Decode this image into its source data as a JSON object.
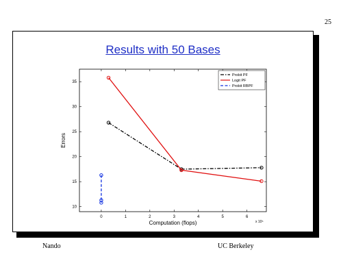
{
  "page_number": "25",
  "slide": {
    "title": "Results with 50 Bases"
  },
  "footer": {
    "left": "Nando",
    "right": "UC Berkeley"
  },
  "chart_data": {
    "type": "line",
    "title": "",
    "xlabel": "Computation (flops)",
    "ylabel": "Errors",
    "x_multiplier": "x 10⁵",
    "xlim": [
      -0.9,
      6.8
    ],
    "ylim": [
      9,
      37.5
    ],
    "xticks": [
      0,
      1,
      2,
      3,
      4,
      5,
      6
    ],
    "yticks": [
      10,
      15,
      20,
      25,
      30,
      35
    ],
    "grid": false,
    "legend_position": "top-right",
    "series": [
      {
        "name": "Probit PF",
        "color": "#000000",
        "line_style": "dash-dot",
        "marker": "circle",
        "x": [
          0.3,
          3.3,
          6.6
        ],
        "y": [
          26.8,
          17.5,
          17.8
        ]
      },
      {
        "name": "Logit PF",
        "color": "#e01010",
        "line_style": "solid",
        "marker": "circle",
        "x": [
          0.3,
          3.3,
          6.6
        ],
        "y": [
          35.8,
          17.3,
          15.1
        ]
      },
      {
        "name": "Probit RBPF",
        "color": "#1030e0",
        "line_style": "dashed",
        "marker": "circle",
        "x": [
          0.0,
          0.0,
          0.0
        ],
        "y": [
          16.3,
          11.3,
          10.8
        ]
      }
    ]
  }
}
